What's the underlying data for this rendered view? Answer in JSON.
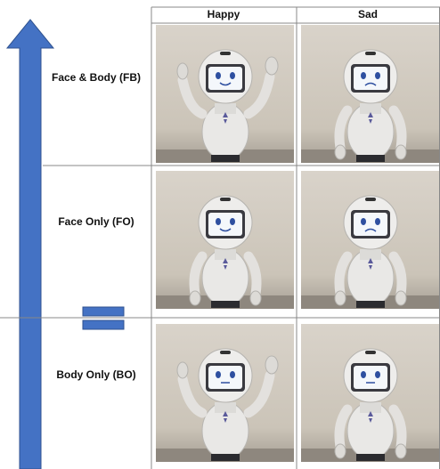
{
  "table": {
    "columns": [
      "Happy",
      "Sad"
    ],
    "rows": [
      "Face & Body (FB)",
      "Face Only (FO)",
      "Body Only (BO)"
    ]
  }
}
